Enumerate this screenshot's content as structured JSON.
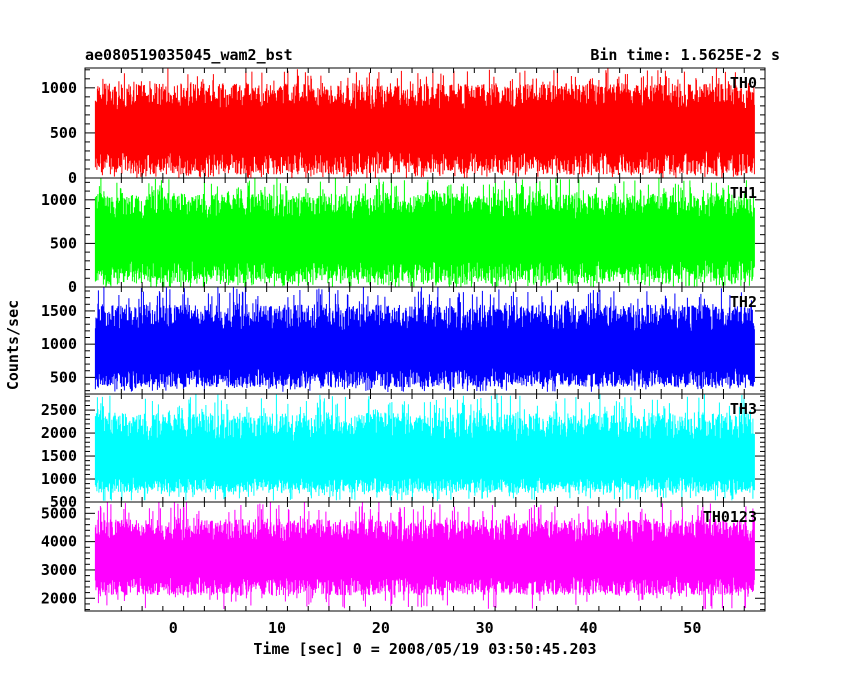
{
  "title": "ae080519035045_wam2_bst",
  "bin_time": "Bin time: 1.5625E-2 s",
  "chart_data": {
    "type": "line",
    "xlabel": "Time [sec] 0 = 2008/05/19 03:50:45.203",
    "ylabel": "Counts/sec",
    "xlim": [
      -8.5,
      57
    ],
    "data_xrange": [
      -7.5,
      56
    ],
    "x_ticks": [
      0,
      10,
      20,
      30,
      40,
      50
    ],
    "panels": [
      {
        "name": "TH0",
        "color": "#ff0000",
        "ylim": [
          0,
          1220
        ],
        "y_ticks": [
          0,
          500,
          1000
        ],
        "mean": 560,
        "low": 40,
        "high": 1050,
        "spike_low": 0,
        "spike_high": 1220
      },
      {
        "name": "TH1",
        "color": "#00ff00",
        "ylim": [
          0,
          1250
        ],
        "y_ticks": [
          0,
          500,
          1000
        ],
        "mean": 580,
        "low": 40,
        "high": 1080,
        "spike_low": 0,
        "spike_high": 1250
      },
      {
        "name": "TH2",
        "color": "#0000ff",
        "ylim": [
          250,
          1860
        ],
        "y_ticks": [
          500,
          1000,
          1500
        ],
        "mean": 930,
        "low": 350,
        "high": 1600,
        "spike_low": 280,
        "spike_high": 1860
      },
      {
        "name": "TH3",
        "color": "#00ffff",
        "ylim": [
          500,
          2850
        ],
        "y_ticks": [
          500,
          1000,
          1500,
          2000,
          2500
        ],
        "mean": 1400,
        "low": 700,
        "high": 2450,
        "spike_low": 520,
        "spike_high": 2850
      },
      {
        "name": "TH0123",
        "color": "#ff00ff",
        "ylim": [
          1550,
          5400
        ],
        "y_ticks": [
          2000,
          3000,
          4000,
          5000
        ],
        "mean": 3450,
        "low": 2100,
        "high": 4800,
        "spike_low": 1600,
        "spike_high": 5400
      }
    ]
  }
}
